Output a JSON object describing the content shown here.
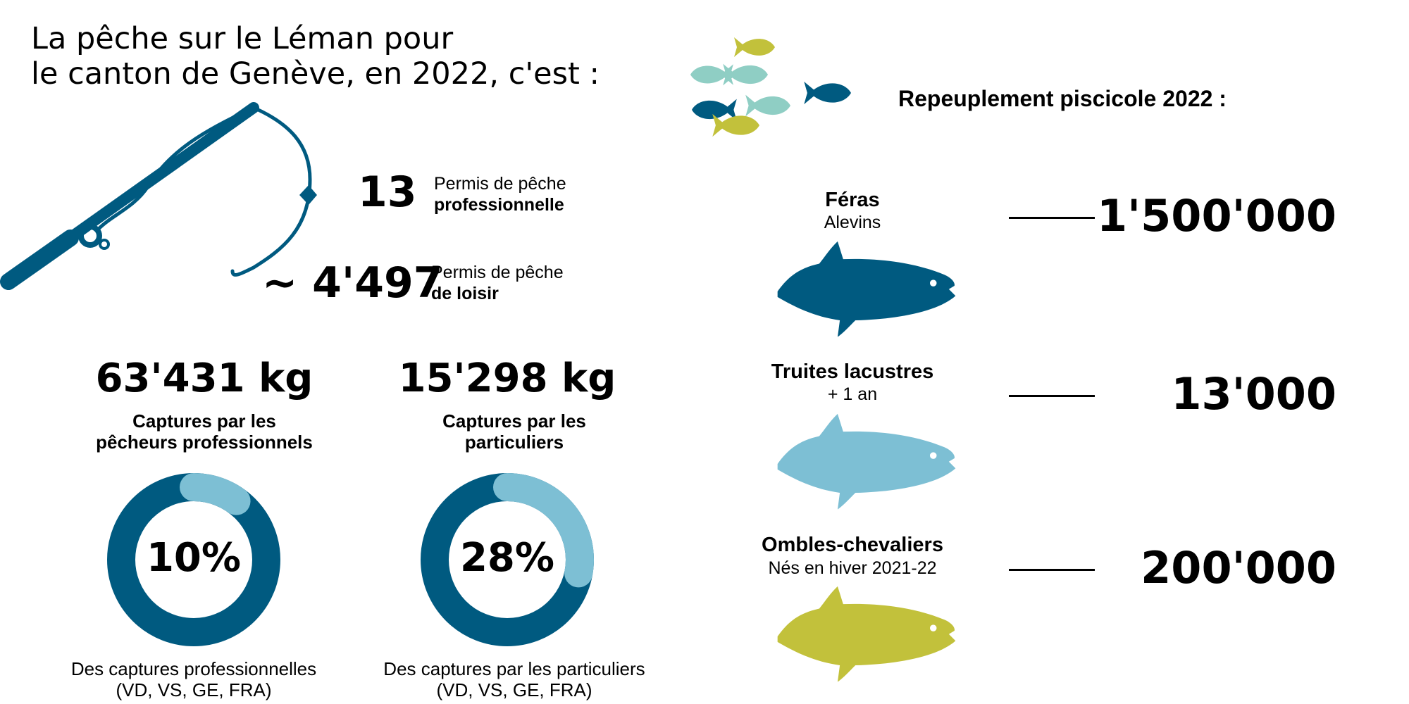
{
  "title": "La pêche sur le Léman pour\nle canton de Genève, en 2022, c'est :",
  "colors": {
    "dark_blue": "#005a80",
    "light_blue": "#7dbfd4",
    "teal": "#8fcec4",
    "olive": "#c2c13b"
  },
  "icons": {
    "rod": "fishing-rod-icon",
    "school": "fish-school-icon",
    "fish": "fish-icon"
  },
  "permits": [
    {
      "number": "13",
      "label": "Permis de pêche",
      "label_bold": "professionnelle"
    },
    {
      "number": "~ 4'497",
      "label": "Permis de pêche",
      "label_bold": "de loisir"
    }
  ],
  "captures": [
    {
      "weight": "63'431 kg",
      "label": [
        "Captures par les",
        "pêcheurs professionnels"
      ],
      "percent": 10,
      "percent_label": "10%",
      "note": [
        "Des captures professionnelles",
        "(VD, VS, GE, FRA)"
      ]
    },
    {
      "weight": "15'298 kg",
      "label": [
        "Captures par les",
        "particuliers"
      ],
      "percent": 28,
      "percent_label": "28%",
      "note": [
        "Des captures par les particuliers",
        "(VD, VS, GE, FRA)"
      ]
    }
  ],
  "restocking": {
    "title": "Repeuplement piscicole 2022 :",
    "species": [
      {
        "name": "Féras",
        "sub": "Alevins",
        "value": "1'500'000",
        "color": "#005a80"
      },
      {
        "name": "Truites lacustres",
        "sub": "+ 1 an",
        "value": "13'000",
        "color": "#7dbfd4"
      },
      {
        "name": "Ombles-chevaliers",
        "sub": "Nés en hiver 2021-22",
        "value": "200'000",
        "color": "#c2c13b"
      }
    ]
  }
}
